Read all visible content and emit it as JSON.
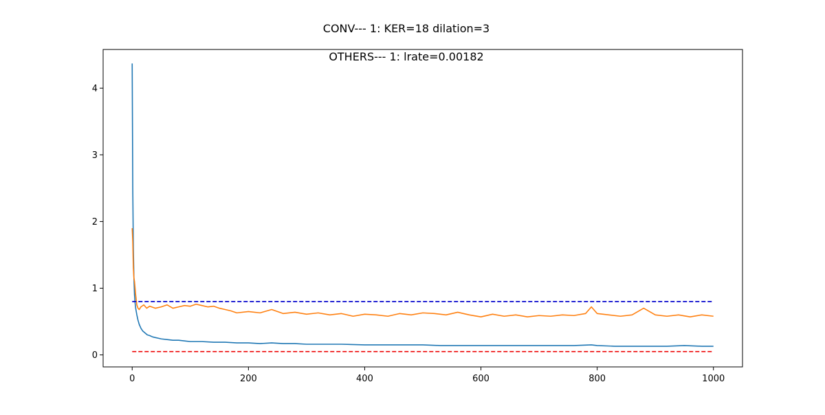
{
  "chart_data": {
    "type": "line",
    "title": "CONV--- 1: KER=18   dilation=3",
    "subtitle": "OTHERS--- 1: lrate=0.00182",
    "xlabel": "",
    "ylabel": "",
    "xlim": [
      -50,
      1050
    ],
    "ylim": [
      -0.18,
      4.58
    ],
    "xticks": [
      0,
      200,
      400,
      600,
      800,
      1000
    ],
    "yticks": [
      0,
      1,
      2,
      3,
      4
    ],
    "grid": false,
    "legend": "none",
    "series": [
      {
        "color": "#1f77b4",
        "style": "solid",
        "x": [
          0,
          1,
          2,
          3,
          4,
          5,
          6,
          8,
          10,
          12,
          15,
          18,
          22,
          26,
          30,
          35,
          40,
          45,
          50,
          60,
          70,
          80,
          90,
          100,
          120,
          140,
          160,
          180,
          200,
          220,
          240,
          260,
          280,
          300,
          330,
          360,
          400,
          430,
          460,
          500,
          530,
          560,
          600,
          640,
          680,
          720,
          760,
          790,
          800,
          830,
          860,
          880,
          900,
          920,
          950,
          980,
          1000
        ],
        "y": [
          4.37,
          2.5,
          1.6,
          1.15,
          0.9,
          0.78,
          0.7,
          0.6,
          0.52,
          0.46,
          0.4,
          0.36,
          0.33,
          0.3,
          0.29,
          0.27,
          0.26,
          0.25,
          0.24,
          0.23,
          0.22,
          0.22,
          0.21,
          0.2,
          0.2,
          0.19,
          0.19,
          0.18,
          0.18,
          0.17,
          0.18,
          0.17,
          0.17,
          0.16,
          0.16,
          0.16,
          0.15,
          0.15,
          0.15,
          0.15,
          0.14,
          0.14,
          0.14,
          0.14,
          0.14,
          0.14,
          0.14,
          0.15,
          0.14,
          0.13,
          0.13,
          0.13,
          0.13,
          0.13,
          0.14,
          0.13,
          0.13
        ]
      },
      {
        "color": "#ff7f0e",
        "style": "solid",
        "x": [
          0,
          1,
          2,
          3,
          4,
          5,
          6,
          8,
          10,
          12,
          15,
          20,
          25,
          30,
          40,
          50,
          60,
          70,
          80,
          90,
          100,
          110,
          120,
          130,
          140,
          150,
          160,
          170,
          180,
          200,
          220,
          240,
          260,
          280,
          300,
          320,
          340,
          360,
          380,
          400,
          420,
          440,
          460,
          480,
          500,
          520,
          540,
          560,
          580,
          600,
          620,
          640,
          660,
          680,
          700,
          720,
          740,
          760,
          780,
          790,
          800,
          820,
          840,
          860,
          880,
          900,
          920,
          940,
          960,
          980,
          1000
        ],
        "y": [
          1.9,
          1.7,
          1.3,
          1.15,
          1.1,
          1.0,
          0.9,
          0.75,
          0.7,
          0.68,
          0.72,
          0.75,
          0.7,
          0.73,
          0.7,
          0.72,
          0.75,
          0.7,
          0.72,
          0.74,
          0.73,
          0.76,
          0.74,
          0.72,
          0.73,
          0.7,
          0.68,
          0.66,
          0.63,
          0.65,
          0.63,
          0.68,
          0.62,
          0.64,
          0.61,
          0.63,
          0.6,
          0.62,
          0.58,
          0.61,
          0.6,
          0.58,
          0.62,
          0.6,
          0.63,
          0.62,
          0.6,
          0.64,
          0.6,
          0.57,
          0.61,
          0.58,
          0.6,
          0.57,
          0.59,
          0.58,
          0.6,
          0.59,
          0.62,
          0.72,
          0.62,
          0.6,
          0.58,
          0.6,
          0.7,
          0.6,
          0.58,
          0.6,
          0.57,
          0.6,
          0.58
        ]
      },
      {
        "color": "#0000cc",
        "style": "dashed",
        "x": [
          0,
          1000
        ],
        "y": [
          0.8,
          0.8
        ]
      },
      {
        "color": "#ee0000",
        "style": "dashed",
        "x": [
          0,
          1000
        ],
        "y": [
          0.05,
          0.05
        ]
      }
    ]
  }
}
